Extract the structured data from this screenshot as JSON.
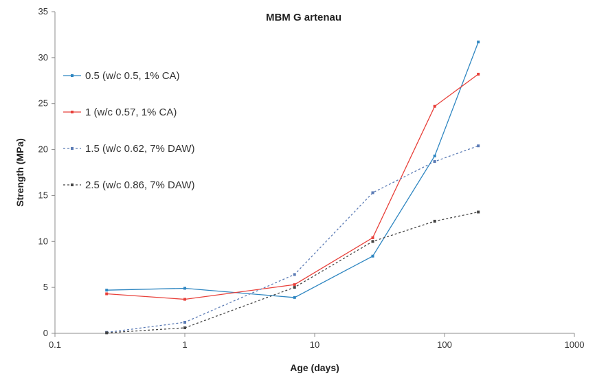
{
  "chart_data": {
    "type": "line",
    "title": "MBM G artenau",
    "xlabel": "Age (days)",
    "ylabel": "Strength (MPa)",
    "xscale": "log",
    "xlim": [
      0.1,
      1000
    ],
    "ylim": [
      0,
      35
    ],
    "x_ticks": [
      "0.1",
      "1",
      "10",
      "100",
      "1000"
    ],
    "y_ticks": [
      "0",
      "5",
      "10",
      "15",
      "20",
      "25",
      "30",
      "35"
    ],
    "grid": false,
    "legend_position": "top-left",
    "series": [
      {
        "name": "0.5 (w/c 0.5, 1% CA)",
        "color": "#2e86c1",
        "dash": "solid",
        "x": [
          0.25,
          1,
          7,
          28,
          84,
          182
        ],
        "y": [
          4.7,
          4.9,
          3.9,
          8.4,
          19.3,
          31.7
        ]
      },
      {
        "name": "1 (w/c 0.57, 1% CA)",
        "color": "#e8403a",
        "dash": "solid",
        "x": [
          0.25,
          1,
          7,
          28,
          84,
          182
        ],
        "y": [
          4.3,
          3.7,
          5.3,
          10.4,
          24.7,
          28.2
        ]
      },
      {
        "name": "1.5 (w/c 0.62, 7% DAW)",
        "color": "#5b7bb5",
        "dash": "dashed",
        "x": [
          0.25,
          1,
          7,
          28,
          84,
          182
        ],
        "y": [
          0.1,
          1.2,
          6.4,
          15.3,
          18.7,
          20.4
        ]
      },
      {
        "name": "2.5 (w/c 0.86, 7% DAW)",
        "color": "#444444",
        "dash": "dashed",
        "x": [
          0.25,
          1,
          7,
          28,
          84,
          182
        ],
        "y": [
          0.05,
          0.6,
          5.0,
          10.0,
          12.2,
          13.2
        ]
      }
    ]
  }
}
